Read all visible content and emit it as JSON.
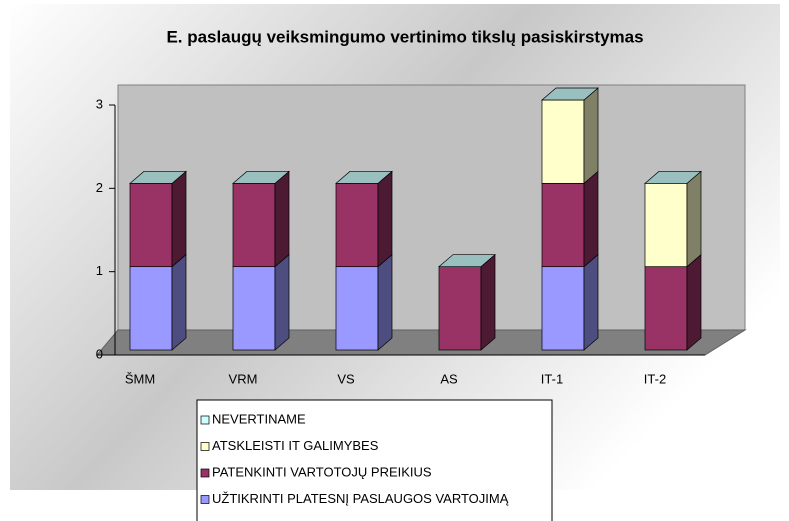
{
  "chart_data": {
    "type": "bar3d_stacked",
    "title": "E. paslaugų veiksmingumo vertinimo tikslų pasiskirstymas",
    "categories": [
      "ŠMM",
      "VRM",
      "VS",
      "AS",
      "IT-1",
      "IT-2"
    ],
    "series": [
      {
        "name": "UŽTIKRINTI PLATESNĮ PASLAUGOS VARTOJIMĄ",
        "color": "#9999ff",
        "values": [
          1,
          1,
          1,
          0,
          1,
          0
        ]
      },
      {
        "name": "PATENKINTI VARTOTOJŲ PREIKIUS",
        "color": "#993366",
        "values": [
          1,
          1,
          1,
          1,
          1,
          1
        ]
      },
      {
        "name": "ATSKLEISTI IT GALIMYBES",
        "color": "#ffffcc",
        "values": [
          0,
          0,
          0,
          0,
          1,
          1
        ]
      },
      {
        "name": "NEVERTINAME",
        "color": "#ccffff",
        "values": [
          0,
          0,
          0,
          0,
          0,
          0
        ]
      }
    ],
    "ylim": [
      0,
      3
    ],
    "yticks": [
      0,
      1,
      2,
      3
    ],
    "legend": "bottom"
  }
}
